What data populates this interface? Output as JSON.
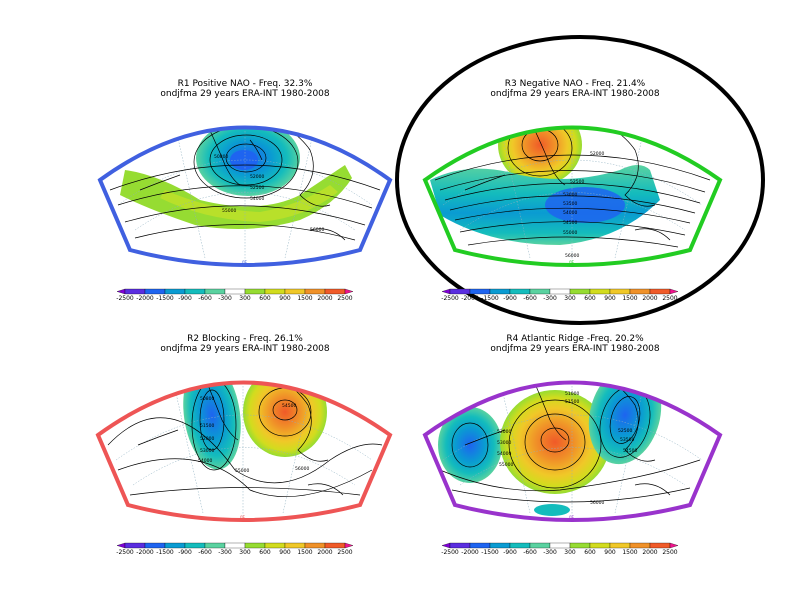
{
  "figure": {
    "colorbar": {
      "labels": [
        "-2500",
        "-2000",
        "-1500",
        "-900",
        "-600",
        "-300",
        "300",
        "600",
        "900",
        "1500",
        "2000",
        "2500"
      ],
      "colors": [
        "#8000d8",
        "#5a2de0",
        "#1e64f0",
        "#0a9bd2",
        "#14bcbc",
        "#5ad2a0",
        "#ffffff",
        "#96dc32",
        "#d2dc1e",
        "#f0c828",
        "#f09128",
        "#f05a28",
        "#f0148c"
      ]
    },
    "panels": [
      {
        "id": "R1",
        "title": "R1 Positive NAO - Freq. 32.3%",
        "subtitle": "ondjfma 29 years ERA-INT 1980-2008",
        "frame_color": "#4060e0",
        "lon_left": "90W",
        "lon_right": "",
        "lon_bottom": "0E",
        "contour_labels": [
          "50800",
          "51500",
          "52000",
          "52500",
          "53000",
          "54000",
          "55000",
          "56000"
        ]
      },
      {
        "id": "R3",
        "title": "R3 Negative NAO - Freq. 21.4%",
        "subtitle": "ondjfma 29 years ERA-INT 1980-2008",
        "frame_color": "#22cc22",
        "lon_left": "",
        "lon_right": "",
        "lon_bottom": "0E",
        "contour_labels": [
          "51000",
          "51500",
          "52000",
          "52500",
          "53000",
          "53500",
          "54000",
          "54500",
          "55000",
          "56000"
        ]
      },
      {
        "id": "R2",
        "title": "R2 Blocking - Freq. 26.1%",
        "subtitle": "ondjfma 29 years ERA-INT 1980-2008",
        "frame_color": "#ee5555",
        "lon_left": "",
        "lon_right": "",
        "lon_bottom": "0E",
        "contour_labels": [
          "50800",
          "51500",
          "52000",
          "53000",
          "54000",
          "54500",
          "55000",
          "56000"
        ]
      },
      {
        "id": "R4",
        "title": "R4 Atlantic Ridge -Freq. 20.2%",
        "subtitle": "ondjfma 29 years ERA-INT 1980-2008",
        "frame_color": "#9933cc",
        "lon_left": "",
        "lon_right": "",
        "lon_bottom": "0E",
        "contour_labels": [
          "50800",
          "51000",
          "51500",
          "52000",
          "52500",
          "53000",
          "53500",
          "54000",
          "54500",
          "55000",
          "56000"
        ]
      }
    ]
  }
}
